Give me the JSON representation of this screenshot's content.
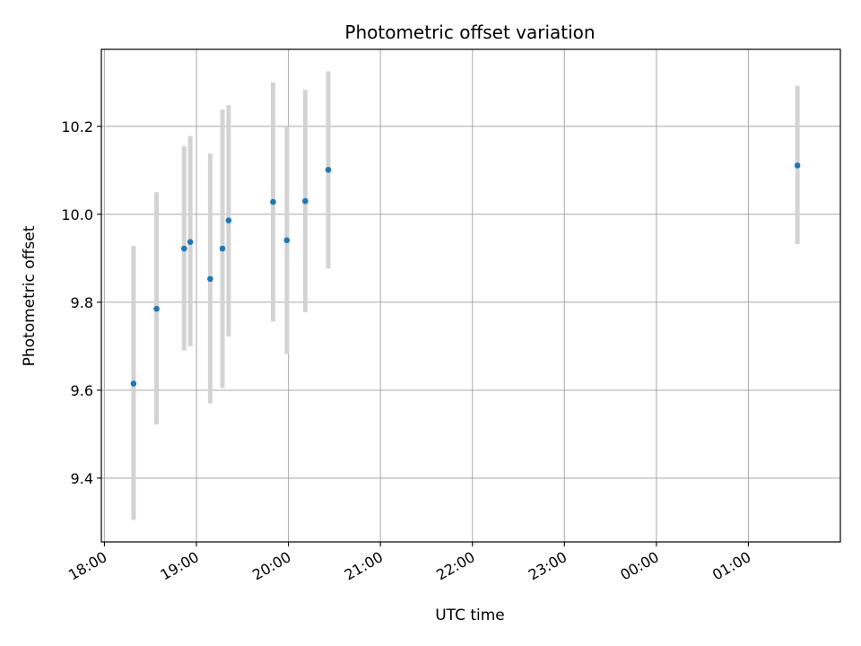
{
  "chart_data": {
    "type": "scatter",
    "title": "Photometric offset variation",
    "xlabel": "UTC time",
    "ylabel": "Photometric offset",
    "x_axis": "time",
    "xlim": [
      "17:58",
      "02:00"
    ],
    "ylim": [
      9.255,
      10.375
    ],
    "grid": true,
    "x_ticks": [
      "18:00",
      "19:00",
      "20:00",
      "21:00",
      "22:00",
      "23:00",
      "00:00",
      "01:00"
    ],
    "y_ticks": [
      9.4,
      9.6,
      9.8,
      10.0,
      10.2
    ],
    "y_tick_labels": [
      "9.4",
      "9.6",
      "9.8",
      "10.0",
      "10.2"
    ],
    "point_color": "#1f77b4",
    "errorbar_color": "#d3d3d3",
    "points": [
      {
        "x": "18:19",
        "y": 9.615,
        "ylow": 9.305,
        "yhigh": 9.928
      },
      {
        "x": "18:34",
        "y": 9.785,
        "ylow": 9.522,
        "yhigh": 10.05
      },
      {
        "x": "18:52",
        "y": 9.922,
        "ylow": 9.69,
        "yhigh": 10.155
      },
      {
        "x": "18:56",
        "y": 9.937,
        "ylow": 9.7,
        "yhigh": 10.178
      },
      {
        "x": "19:09",
        "y": 9.853,
        "ylow": 9.57,
        "yhigh": 10.138
      },
      {
        "x": "19:17",
        "y": 9.922,
        "ylow": 9.605,
        "yhigh": 10.238
      },
      {
        "x": "19:21",
        "y": 9.986,
        "ylow": 9.722,
        "yhigh": 10.248
      },
      {
        "x": "19:50",
        "y": 10.028,
        "ylow": 9.756,
        "yhigh": 10.3
      },
      {
        "x": "19:59",
        "y": 9.941,
        "ylow": 9.682,
        "yhigh": 10.2
      },
      {
        "x": "20:11",
        "y": 10.03,
        "ylow": 9.777,
        "yhigh": 10.283
      },
      {
        "x": "20:26",
        "y": 10.101,
        "ylow": 9.877,
        "yhigh": 10.325
      },
      {
        "x": "01:32",
        "y": 10.111,
        "ylow": 9.932,
        "yhigh": 10.292
      }
    ]
  }
}
